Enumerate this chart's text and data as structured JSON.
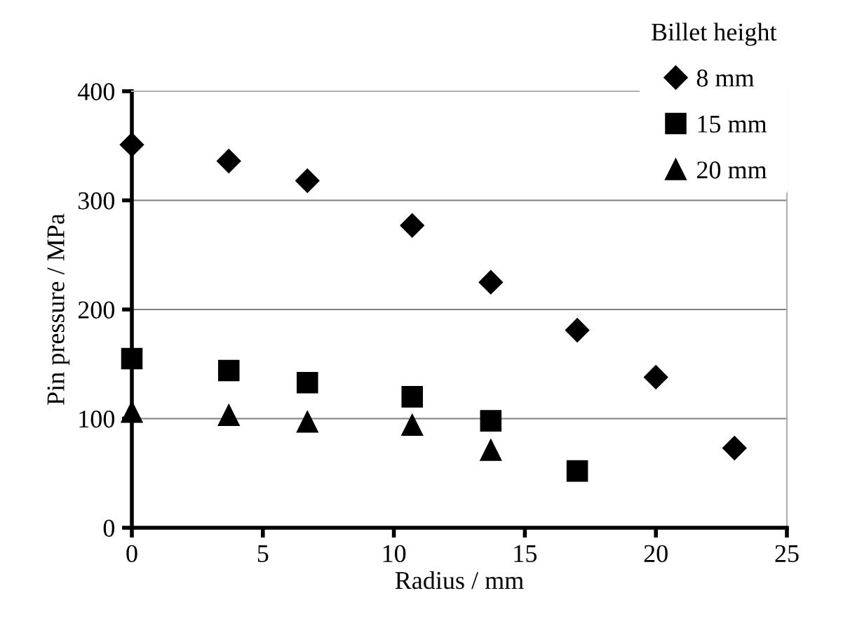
{
  "chart_data": {
    "type": "scatter",
    "xlabel": "Radius / mm",
    "ylabel": "Pin pressure / MPa",
    "legend_title": "Billet height",
    "xlim": [
      0,
      25
    ],
    "xticks": [
      0,
      5,
      10,
      15,
      20,
      25
    ],
    "ylim": [
      0,
      400
    ],
    "yticks": [
      0,
      100,
      200,
      300,
      400
    ],
    "grid": "y",
    "legend": "top right",
    "series": [
      {
        "name": "8 mm",
        "color": "#000000",
        "marker": "diamond",
        "x": [
          0,
          3.7,
          6.7,
          10.7,
          13.7,
          17,
          20,
          23
        ],
        "values": [
          351,
          336,
          318,
          277,
          225,
          181,
          138,
          73
        ]
      },
      {
        "name": "15 mm",
        "color": "#000000",
        "marker": "square",
        "x": [
          0,
          3.7,
          6.7,
          10.7,
          13.7,
          17
        ],
        "values": [
          155,
          144,
          133,
          120,
          98,
          52
        ]
      },
      {
        "name": "20 mm",
        "color": "#000000",
        "marker": "triangle",
        "x": [
          0,
          3.7,
          6.7,
          10.7,
          13.7
        ],
        "values": [
          106,
          103,
          97,
          94,
          71
        ]
      }
    ]
  }
}
